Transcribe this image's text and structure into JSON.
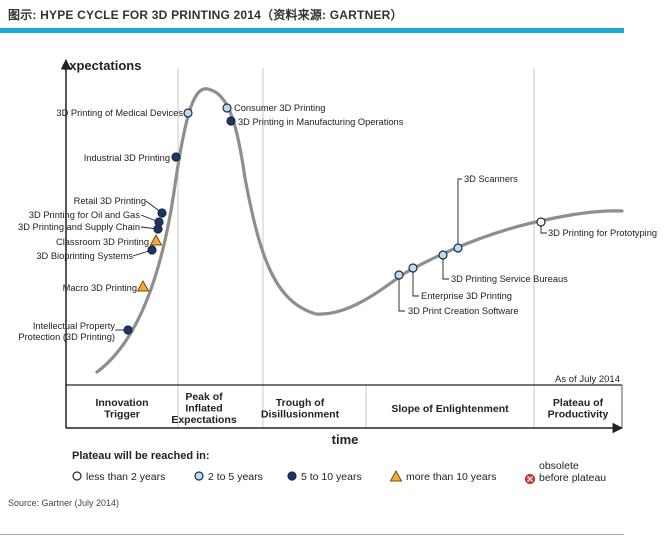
{
  "title": "图示:  HYPE CYCLE FOR 3D PRINTING 2014（资料来源:  GARTNER）",
  "source": "Source: Gartner (July 2014)",
  "chart_data": {
    "type": "line",
    "title": "Hype Cycle for 3D Printing 2014",
    "ylabel": "expectations",
    "xlabel": "time",
    "as_of": "As of July 2014",
    "phases": [
      {
        "label": [
          "Innovation",
          "Trigger"
        ]
      },
      {
        "label": [
          "Peak of",
          "Inflated",
          "Expectations"
        ]
      },
      {
        "label": [
          "Trough of",
          "Disillusionment"
        ]
      },
      {
        "label": [
          "Slope of Enlightenment"
        ]
      },
      {
        "label": [
          "Plateau of",
          "Productivity"
        ]
      }
    ],
    "legend": {
      "title": "Plateau will be reached in:",
      "items": [
        {
          "key": "lt2",
          "label": "less than 2 years",
          "color": "#ffffff"
        },
        {
          "key": "2to5",
          "label": "2 to 5 years",
          "color": "#b9dcef"
        },
        {
          "key": "5to10",
          "label": "5 to 10 years",
          "color": "#1d3566"
        },
        {
          "key": "gt10",
          "label": "more than 10 years",
          "color": "#f2a93b"
        },
        {
          "key": "obsolete",
          "label": [
            "obsolete",
            "before plateau"
          ],
          "color": "#e0413a"
        }
      ]
    },
    "technologies": [
      {
        "name": "3D Printing of Medical Devices",
        "category": "2to5"
      },
      {
        "name": "Consumer 3D Printing",
        "category": "2to5"
      },
      {
        "name": "3D Printing in Manufacturing Operations",
        "category": "5to10"
      },
      {
        "name": "Industrial 3D Printing",
        "category": "5to10"
      },
      {
        "name": "Retail 3D Printing",
        "category": "5to10"
      },
      {
        "name": "3D Printing for Oil and Gas",
        "category": "5to10"
      },
      {
        "name": "3D Printing and Supply Chain",
        "category": "5to10"
      },
      {
        "name": "Classroom 3D Printing",
        "category": "gt10"
      },
      {
        "name": "3D Bioprinting Systems",
        "category": "5to10"
      },
      {
        "name": "Macro 3D Printing",
        "category": "gt10"
      },
      {
        "name": [
          "Intellectual Property",
          "Protection (3D Printing)"
        ],
        "category": "5to10"
      },
      {
        "name": "3D Printing for Prototyping",
        "category": "lt2"
      },
      {
        "name": "3D Scanners",
        "category": "2to5"
      },
      {
        "name": "3D Printing Service Bureaus",
        "category": "2to5"
      },
      {
        "name": "Enterprise 3D Printing",
        "category": "2to5"
      },
      {
        "name": "3D Print Creation Software",
        "category": "2to5"
      }
    ]
  }
}
